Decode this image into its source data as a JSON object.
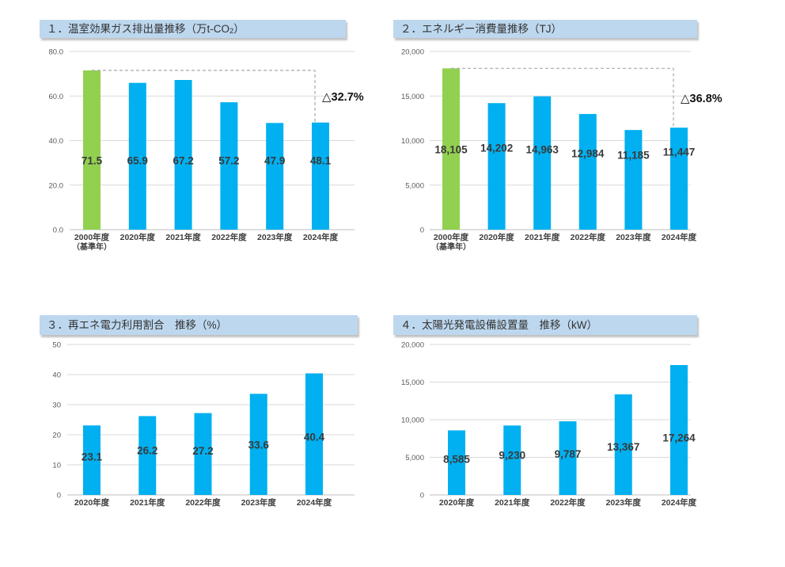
{
  "colors": {
    "header_bg": "#BDD7EE",
    "header_text": "#333333",
    "bar_blue": "#00B0F0",
    "bar_green": "#92D050",
    "grid_line": "#D9D9D9",
    "axis_line": "#BFBFBF",
    "dash_line": "#A9A9A9",
    "axis_text": "#595959",
    "category_text": "#404040",
    "value_text": "#3A3A3A",
    "annotation_text": "#111111"
  },
  "chart_data": [
    {
      "name": "ghg-emissions",
      "type": "bar",
      "title": {
        "pre": "１．温室効果ガス排出量推移（万t-CO",
        "sub": "2",
        "post": "）"
      },
      "categories": [
        "2000年度",
        "2020年度",
        "2021年度",
        "2022年度",
        "2023年度",
        "2024年度"
      ],
      "category_notes": [
        "（基準年）",
        "",
        "",
        "",
        "",
        ""
      ],
      "values": [
        71.5,
        65.9,
        67.2,
        57.2,
        47.9,
        48.1
      ],
      "value_labels": [
        "71.5",
        "65.9",
        "67.2",
        "57.2",
        "47.9",
        "48.1"
      ],
      "ylim": [
        0,
        80
      ],
      "yticks": [
        80,
        60,
        40,
        20,
        0
      ],
      "ytick_labels": [
        "80.0",
        "60.0",
        "40.0",
        "20.0",
        "0.0"
      ],
      "grid": true,
      "legend": false,
      "bar_color": "#00B0F0",
      "baseline_index": 0,
      "baseline_color": "#92D050",
      "annotation": {
        "symbol": "△",
        "text": "32.7%"
      },
      "label_placement": {
        "mode": "fixed",
        "value": 31,
        "dy": [
          0,
          0,
          0,
          0,
          0,
          0
        ]
      }
    },
    {
      "name": "energy-consumption",
      "type": "bar",
      "title": {
        "pre": "２．エネルギー消費量推移（TJ）",
        "sub": "",
        "post": ""
      },
      "categories": [
        "2000年度",
        "2020年度",
        "2021年度",
        "2022年度",
        "2023年度",
        "2024年度"
      ],
      "category_notes": [
        "（基準年）",
        "",
        "",
        "",
        "",
        ""
      ],
      "values": [
        18105,
        14202,
        14963,
        12984,
        11185,
        11447
      ],
      "value_labels": [
        "18,105",
        "14,202",
        "14,963",
        "12,984",
        "11,185",
        "11,447"
      ],
      "ylim": [
        0,
        20000
      ],
      "yticks": [
        20000,
        15000,
        10000,
        5000,
        0
      ],
      "ytick_labels": [
        "20,000",
        "15,000",
        "10,000",
        "5,000",
        "0"
      ],
      "grid": true,
      "legend": false,
      "bar_color": "#00B0F0",
      "baseline_index": 0,
      "baseline_color": "#92D050",
      "annotation": {
        "symbol": "△",
        "text": "36.8%"
      },
      "label_placement": {
        "mode": "fixed",
        "value": 8800,
        "dy": [
          -2,
          -4,
          -2,
          3,
          5,
          1
        ]
      }
    },
    {
      "name": "renewable-electricity-ratio",
      "type": "bar",
      "title": {
        "pre": "３．再エネ電力利用割合　推移（%）",
        "sub": "",
        "post": ""
      },
      "categories": [
        "2020年度",
        "2021年度",
        "2022年度",
        "2023年度",
        "2024年度"
      ],
      "category_notes": [
        "",
        "",
        "",
        "",
        ""
      ],
      "values": [
        23.1,
        26.2,
        27.2,
        33.6,
        40.4
      ],
      "value_labels": [
        "23.1",
        "26.2",
        "27.2",
        "33.6",
        "40.4"
      ],
      "ylim": [
        0,
        50
      ],
      "yticks": [
        50,
        40,
        30,
        20,
        10,
        0
      ],
      "ytick_labels": [
        "50",
        "40",
        "30",
        "20",
        "10",
        "0"
      ],
      "grid": true,
      "legend": false,
      "bar_color": "#00B0F0",
      "label_placement": {
        "mode": "center",
        "dy": [
          -4,
          -6,
          -4,
          1,
          4
        ]
      }
    },
    {
      "name": "solar-pv-installed-capacity",
      "type": "bar",
      "title": {
        "pre": "４．太陽光発電設備設置量　推移（kW）",
        "sub": "",
        "post": ""
      },
      "categories": [
        "2020年度",
        "2021年度",
        "2022年度",
        "2023年度",
        "2024年度"
      ],
      "category_notes": [
        "",
        "",
        "",
        "",
        ""
      ],
      "values": [
        8585,
        9230,
        9787,
        13367,
        17264
      ],
      "value_labels": [
        "8,585",
        "9,230",
        "9,787",
        "13,367",
        "17,264"
      ],
      "ylim": [
        0,
        20000
      ],
      "yticks": [
        20000,
        15000,
        10000,
        5000,
        0
      ],
      "ytick_labels": [
        "20,000",
        "15,000",
        "10,000",
        "5,000",
        "0"
      ],
      "grid": true,
      "legend": false,
      "bar_color": "#00B0F0",
      "label_placement": {
        "mode": "center",
        "dy": [
          -4,
          -6,
          -5,
          3,
          10
        ]
      }
    }
  ]
}
